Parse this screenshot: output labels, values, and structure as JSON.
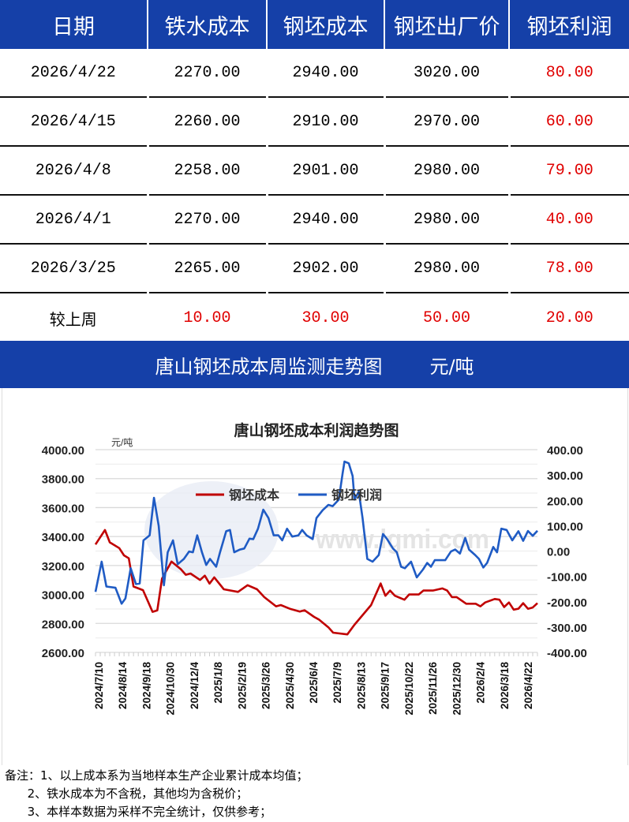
{
  "table": {
    "headers": [
      "日期",
      "铁水成本",
      "钢坯成本",
      "钢坯出厂价",
      "钢坯利润"
    ],
    "rows": [
      [
        "2026/4/22",
        "2270.00",
        "2940.00",
        "3020.00",
        "80.00"
      ],
      [
        "2026/4/15",
        "2260.00",
        "2910.00",
        "2970.00",
        "60.00"
      ],
      [
        "2026/4/8",
        "2258.00",
        "2901.00",
        "2980.00",
        "79.00"
      ],
      [
        "2026/4/1",
        "2270.00",
        "2940.00",
        "2980.00",
        "40.00"
      ],
      [
        "2026/3/25",
        "2265.00",
        "2902.00",
        "2980.00",
        "78.00"
      ]
    ],
    "compare": [
      "较上周",
      "10.00",
      "30.00",
      "50.00",
      "20.00"
    ]
  },
  "section": {
    "title": "唐山钢坯成本周监测走势图",
    "unit": "元/吨"
  },
  "chart_data": {
    "type": "line",
    "title": "唐山钢坯成本利润趋势图",
    "ylabel": "元/吨",
    "watermark": "www.lgmi.com",
    "ylim": [
      2600,
      4000
    ],
    "y2lim": [
      -400,
      400
    ],
    "yticks": [
      "4000.00",
      "3800.00",
      "3600.00",
      "3400.00",
      "3200.00",
      "3000.00",
      "2800.00",
      "2600.00"
    ],
    "y2ticks": [
      "400.00",
      "300.00",
      "200.00",
      "100.00",
      "0.00",
      "-100.00",
      "-200.00",
      "-300.00",
      "-400.00"
    ],
    "xlim": [
      0,
      93
    ],
    "xticklabels": [
      "2024/7/10",
      "2024/8/14",
      "2024/9/18",
      "2024/10/30",
      "2024/12/4",
      "2025/1/8",
      "2025/2/19",
      "2025/3/26",
      "2025/4/30",
      "2025/6/4",
      "2025/7/9",
      "2025/8/13",
      "2025/9/17",
      "2025/10/22",
      "2025/11/26",
      "2025/12/30",
      "2026/2/4",
      "2026/3/18",
      "2026/4/22"
    ],
    "legend_position": "top-center",
    "series": [
      {
        "name": "钢坯成本",
        "axis": "left",
        "color": "#c00000",
        "points": [
          [
            0,
            3345
          ],
          [
            2,
            3445
          ],
          [
            3,
            3360
          ],
          [
            5,
            3320
          ],
          [
            6,
            3270
          ],
          [
            7,
            3250
          ],
          [
            8,
            3055
          ],
          [
            10,
            3030
          ],
          [
            12,
            2880
          ],
          [
            13,
            2890
          ],
          [
            14,
            3110
          ],
          [
            16,
            3227
          ],
          [
            18,
            3173
          ],
          [
            19,
            3136
          ],
          [
            20,
            3145
          ],
          [
            22,
            3100
          ],
          [
            23,
            3130
          ],
          [
            24,
            3075
          ],
          [
            25,
            3118
          ],
          [
            27,
            3036
          ],
          [
            30,
            3018
          ],
          [
            32,
            3064
          ],
          [
            34,
            3036
          ],
          [
            35.5,
            2982
          ],
          [
            38,
            2918
          ],
          [
            39,
            2927
          ],
          [
            41,
            2900
          ],
          [
            43,
            2882
          ],
          [
            44,
            2891
          ],
          [
            46,
            2845
          ],
          [
            47,
            2827
          ],
          [
            49,
            2773
          ],
          [
            50,
            2736
          ],
          [
            53,
            2724
          ],
          [
            54.5,
            2791
          ],
          [
            58,
            2927
          ],
          [
            60,
            3076
          ],
          [
            61,
            2991
          ],
          [
            62,
            3027
          ],
          [
            63,
            2991
          ],
          [
            65,
            2964
          ],
          [
            66,
            3000
          ],
          [
            68,
            3000
          ],
          [
            69,
            3027
          ],
          [
            71,
            3027
          ],
          [
            73,
            3042
          ],
          [
            74,
            3027
          ],
          [
            75,
            2982
          ],
          [
            76,
            2982
          ],
          [
            78,
            2936
          ],
          [
            80,
            2936
          ],
          [
            81,
            2918
          ],
          [
            82,
            2945
          ],
          [
            84,
            2969
          ],
          [
            85,
            2964
          ],
          [
            86,
            2913
          ],
          [
            87,
            2945
          ],
          [
            88,
            2895
          ],
          [
            89,
            2902
          ],
          [
            90,
            2940
          ],
          [
            91,
            2901
          ],
          [
            92,
            2910
          ],
          [
            93,
            2940
          ]
        ]
      },
      {
        "name": "钢坯利润",
        "axis": "right",
        "color": "#1f5bc4",
        "points": [
          [
            0,
            -161
          ],
          [
            1.3,
            -42
          ],
          [
            2.3,
            -140
          ],
          [
            4.2,
            -145
          ],
          [
            5.5,
            -208
          ],
          [
            6.3,
            -187
          ],
          [
            7.4,
            -68
          ],
          [
            8.5,
            -130
          ],
          [
            9.3,
            -128
          ],
          [
            10.1,
            42
          ],
          [
            11.4,
            62
          ],
          [
            12.3,
            210
          ],
          [
            13.3,
            99
          ],
          [
            14.4,
            -135
          ],
          [
            15.2,
            -5
          ],
          [
            16.3,
            42
          ],
          [
            17.3,
            -52
          ],
          [
            18.6,
            -31
          ],
          [
            19.7,
            -2
          ],
          [
            20.5,
            -5
          ],
          [
            21.4,
            62
          ],
          [
            22.4,
            -5
          ],
          [
            23.3,
            -55
          ],
          [
            24.1,
            -31
          ],
          [
            25.4,
            -62
          ],
          [
            26.2,
            -5
          ],
          [
            27.5,
            78
          ],
          [
            28.3,
            83
          ],
          [
            29.2,
            -5
          ],
          [
            30.4,
            6
          ],
          [
            31.3,
            10
          ],
          [
            32.4,
            49
          ],
          [
            33.2,
            47
          ],
          [
            34.2,
            88
          ],
          [
            35.3,
            163
          ],
          [
            36.4,
            130
          ],
          [
            37.5,
            62
          ],
          [
            38.5,
            62
          ],
          [
            39.3,
            42
          ],
          [
            40.3,
            88
          ],
          [
            41.4,
            57
          ],
          [
            42.7,
            62
          ],
          [
            43.5,
            83
          ],
          [
            44.4,
            62
          ],
          [
            45.7,
            47
          ],
          [
            46.5,
            130
          ],
          [
            47.8,
            161
          ],
          [
            49,
            182
          ],
          [
            49.9,
            177
          ],
          [
            51.2,
            203
          ],
          [
            52,
            306
          ],
          [
            52.4,
            353
          ],
          [
            53.3,
            346
          ],
          [
            54.1,
            296
          ],
          [
            54.5,
            203
          ],
          [
            55.4,
            234
          ],
          [
            56.2,
            130
          ],
          [
            57.2,
            -31
          ],
          [
            58.3,
            -42
          ],
          [
            59.6,
            -16
          ],
          [
            60.5,
            67
          ],
          [
            61.3,
            49
          ],
          [
            62.6,
            10
          ],
          [
            63.4,
            -5
          ],
          [
            64.3,
            -62
          ],
          [
            65.1,
            -68
          ],
          [
            66.4,
            -42
          ],
          [
            67.6,
            -104
          ],
          [
            68.9,
            -73
          ],
          [
            69.8,
            -47
          ],
          [
            70.6,
            -62
          ],
          [
            71.4,
            -36
          ],
          [
            73.6,
            -36
          ],
          [
            74.8,
            -2
          ],
          [
            75.7,
            6
          ],
          [
            76.7,
            -10
          ],
          [
            77.8,
            52
          ],
          [
            78.6,
            6
          ],
          [
            79.9,
            -16
          ],
          [
            80.7,
            -31
          ],
          [
            81.6,
            -65
          ],
          [
            82.4,
            -47
          ],
          [
            83.7,
            16
          ],
          [
            84.5,
            -5
          ],
          [
            85.4,
            88
          ],
          [
            86.5,
            83
          ],
          [
            87.7,
            42
          ],
          [
            89,
            78
          ],
          [
            90,
            40
          ],
          [
            91,
            79
          ],
          [
            92,
            60
          ],
          [
            93,
            80
          ]
        ]
      }
    ]
  },
  "notes": [
    "备注：1、以上成本系为当地样本生产企业累计成本均值；",
    "      2、铁水成本为不含税，其他均为含税价；",
    "      3、本样本数据为采样不完全统计，仅供参考；"
  ]
}
